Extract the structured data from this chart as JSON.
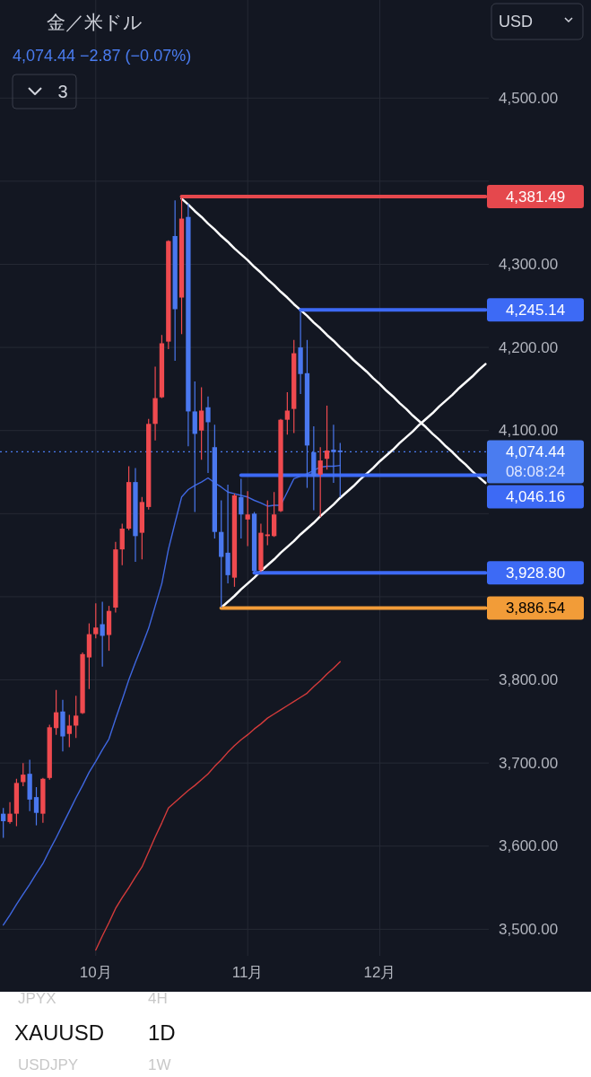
{
  "chart_data": {
    "type": "candlestick",
    "title": "金／米ドル",
    "subtitle": "4,074.44 −2.87 (−0.07%)",
    "categories": [
      null,
      null,
      null,
      null,
      null,
      null,
      null,
      null,
      null,
      null,
      null,
      null,
      null,
      null,
      "10月",
      null,
      null,
      null,
      null,
      null,
      null,
      null,
      null,
      null,
      null,
      null,
      null,
      null,
      null,
      null,
      null,
      null,
      null,
      null,
      null,
      null,
      null,
      "11月",
      null,
      null,
      null,
      null,
      null,
      null,
      null,
      null,
      null,
      null,
      null,
      null,
      null,
      null,
      null,
      null,
      null,
      null,
      null,
      "12月",
      null,
      null,
      null,
      null,
      null,
      null,
      null,
      null,
      null,
      null,
      null,
      null,
      null,
      null,
      null,
      null
    ],
    "ohlc": [
      [
        3639,
        3646,
        3610,
        3630
      ],
      [
        3629,
        3653,
        3627,
        3639
      ],
      [
        3639,
        3681,
        3624,
        3676
      ],
      [
        3677,
        3700,
        3672,
        3686
      ],
      [
        3687,
        3704,
        3642,
        3656
      ],
      [
        3659,
        3671,
        3625,
        3640
      ],
      [
        3639,
        3682,
        3628,
        3681
      ],
      [
        3682,
        3746,
        3680,
        3743
      ],
      [
        3742,
        3788,
        3734,
        3761
      ],
      [
        3762,
        3776,
        3714,
        3732
      ],
      [
        3735,
        3758,
        3719,
        3745
      ],
      [
        3745,
        3781,
        3730,
        3757
      ],
      [
        3760,
        3833,
        3759,
        3831
      ],
      [
        3827,
        3868,
        3789,
        3855
      ],
      [
        3855,
        3892,
        3850,
        3863
      ],
      [
        3867,
        3894,
        3816,
        3853
      ],
      [
        3854,
        3889,
        3835,
        3883
      ],
      [
        3887,
        3966,
        3881,
        3957
      ],
      [
        3957,
        3988,
        3938,
        3982
      ],
      [
        3982,
        4057,
        3980,
        4038
      ],
      [
        4038,
        4055,
        3942,
        3973
      ],
      [
        3977,
        4020,
        3945,
        4014
      ],
      [
        4008,
        4114,
        4005,
        4108
      ],
      [
        4108,
        4177,
        4088,
        4139
      ],
      [
        4140,
        4215,
        4139,
        4205
      ],
      [
        4207,
        4329,
        4198,
        4328
      ],
      [
        4334,
        4377,
        4184,
        4246
      ],
      [
        4260,
        4381,
        4216,
        4355
      ],
      [
        4357,
        4373,
        4081,
        4123
      ],
      [
        4123,
        4159,
        4002,
        4096
      ],
      [
        4100,
        4152,
        4065,
        4124
      ],
      [
        4128,
        4141,
        4049,
        4110
      ],
      [
        4080,
        4107,
        3970,
        3978
      ],
      [
        3978,
        4016,
        3887,
        3948
      ],
      [
        3953,
        4035,
        3916,
        3926
      ],
      [
        3923,
        4024,
        3912,
        4022
      ],
      [
        4020,
        4042,
        3970,
        3999
      ],
      [
        3993,
        4027,
        3961,
        3999
      ],
      [
        4000,
        4002,
        3929,
        3931
      ],
      [
        3932,
        3988,
        3930,
        3977
      ],
      [
        3973,
        4016,
        3962,
        3975
      ],
      [
        3973,
        4026,
        3972,
        3999
      ],
      [
        4003,
        4114,
        4002,
        4113
      ],
      [
        4113,
        4146,
        4095,
        4124
      ],
      [
        4126,
        4209,
        4097,
        4193
      ],
      [
        4200,
        4245,
        4144,
        4168
      ],
      [
        4169,
        4209,
        4031,
        4082
      ],
      [
        4074,
        4105,
        4004,
        4045
      ],
      [
        4047,
        4080,
        3996,
        4064
      ],
      [
        4066,
        4130,
        4053,
        4076
      ],
      [
        4077,
        4107,
        4037,
        4074
      ],
      [
        4076,
        4085,
        4020,
        4074
      ],
      null,
      null,
      null,
      null,
      null,
      null,
      null,
      null,
      null,
      null,
      null,
      null,
      null,
      null,
      null,
      null,
      null,
      null,
      null,
      null,
      null,
      null
    ],
    "colors": [
      "#4a78ef",
      "#ef4a4f",
      "#ef4a4f",
      "#ef4a4f",
      "#4a78ef",
      "#4a78ef",
      "#ef4a4f",
      "#ef4a4f",
      "#ef4a4f",
      "#4a78ef",
      "#ef4a4f",
      "#ef4a4f",
      "#ef4a4f",
      "#ef4a4f",
      "#ef4a4f",
      "#4a78ef",
      "#ef4a4f",
      "#ef4a4f",
      "#ef4a4f",
      "#ef4a4f",
      "#4a78ef",
      "#ef4a4f",
      "#ef4a4f",
      "#ef4a4f",
      "#ef4a4f",
      "#ef4a4f",
      "#4a78ef",
      "#ef4a4f",
      "#4a78ef",
      "#4a78ef",
      "#ef4a4f",
      "#4a78ef",
      "#4a78ef",
      "#4a78ef",
      "#4a78ef",
      "#ef4a4f",
      "#4a78ef",
      "#ef4a4f",
      "#4a78ef",
      "#ef4a4f",
      "#ef4a4f",
      "#ef4a4f",
      "#ef4a4f",
      "#ef4a4f",
      "#ef4a4f",
      "#4a78ef",
      "#4a78ef",
      "#4a78ef",
      "#ef4a4f",
      "#ef4a4f",
      "#4a78ef",
      "#4a78ef",
      null,
      null,
      null,
      null,
      null,
      null,
      null,
      null,
      null,
      null,
      null,
      null,
      null,
      null,
      null,
      null,
      null,
      null,
      null,
      null,
      null,
      null
    ],
    "series": [
      {
        "type": "line",
        "color": "#3f67e0",
        "values": [
          3505,
          3517,
          3530,
          3542,
          3554,
          3567,
          3579,
          3595,
          3610,
          3626,
          3642,
          3658,
          3673,
          3689,
          3702,
          3716,
          3729,
          3753,
          3776,
          3800,
          3821,
          3841,
          3862,
          3889,
          3916,
          3957,
          3989,
          4020,
          4029,
          4034,
          4038,
          4043,
          4037,
          4032,
          4026,
          4024,
          4022,
          4020,
          4016,
          4013,
          4009,
          4010,
          4010,
          4026,
          4042,
          4045,
          4048,
          4052,
          4056,
          4057,
          4057,
          4058,
          null,
          null,
          null,
          null,
          null,
          null,
          null,
          null,
          null,
          null,
          null,
          null,
          null,
          null,
          null,
          null,
          null,
          null,
          null,
          null,
          null,
          null
        ]
      },
      {
        "type": "line",
        "color": "#d43b3b",
        "values": [
          null,
          null,
          null,
          null,
          null,
          null,
          null,
          null,
          null,
          null,
          null,
          null,
          null,
          null,
          3475,
          3492,
          3508,
          3525,
          3538,
          3550,
          3563,
          3575,
          3593,
          3611,
          3628,
          3646,
          3653,
          3660,
          3667,
          3673,
          3680,
          3687,
          3696,
          3704,
          3713,
          3721,
          3728,
          3734,
          3741,
          3747,
          3754,
          3759,
          3764,
          3769,
          3774,
          3779,
          3784,
          3792,
          3799,
          3807,
          3814,
          3822,
          null,
          null,
          null,
          null,
          null,
          null,
          null,
          null,
          null,
          null,
          null,
          null,
          null,
          null,
          null,
          null,
          null,
          null,
          null,
          null,
          null,
          null
        ]
      },
      {
        "type": "line",
        "color": "#ffffff",
        "values": [
          null,
          null,
          null,
          null,
          null,
          null,
          null,
          null,
          null,
          null,
          null,
          null,
          null,
          null,
          null,
          null,
          null,
          null,
          null,
          null,
          null,
          null,
          null,
          null,
          null,
          null,
          null,
          4379,
          4372,
          4364,
          4357,
          4349,
          4342,
          4334,
          4327,
          4319,
          4312,
          4305,
          4297,
          4290,
          4282,
          4275,
          4267,
          4260,
          4252,
          4245,
          4238,
          4230,
          4223,
          4215,
          4208,
          4200,
          4193,
          4185,
          4178,
          4171,
          4163,
          4156,
          4148,
          4141,
          4133,
          4126,
          4118,
          4111,
          4104,
          4096,
          4089,
          4081,
          4074,
          4066,
          4059,
          4051,
          4044,
          4037
        ]
      },
      {
        "type": "line",
        "color": "#ffffff",
        "values": [
          null,
          null,
          null,
          null,
          null,
          null,
          null,
          null,
          null,
          null,
          null,
          null,
          null,
          null,
          null,
          null,
          null,
          null,
          null,
          null,
          null,
          null,
          null,
          null,
          null,
          null,
          null,
          null,
          null,
          null,
          null,
          null,
          null,
          3887,
          3894,
          3901,
          3909,
          3916,
          3923,
          3931,
          3938,
          3945,
          3953,
          3960,
          3967,
          3975,
          3982,
          3989,
          3997,
          4004,
          4011,
          4019,
          4026,
          4033,
          4041,
          4048,
          4055,
          4063,
          4070,
          4077,
          4085,
          4092,
          4099,
          4107,
          4114,
          4121,
          4129,
          4136,
          4143,
          4151,
          4158,
          4165,
          4173,
          4180
        ]
      },
      {
        "type": "line",
        "color": "#e5484d",
        "values": [
          null,
          null,
          null,
          null,
          null,
          null,
          null,
          null,
          null,
          null,
          null,
          null,
          null,
          null,
          null,
          null,
          null,
          null,
          null,
          null,
          null,
          null,
          null,
          null,
          null,
          null,
          null,
          4381.49,
          4381.49,
          4381.49,
          4381.49,
          4381.49,
          4381.49,
          4381.49,
          4381.49,
          4381.49,
          4381.49,
          4381.49,
          4381.49,
          4381.49,
          4381.49,
          4381.49,
          4381.49,
          4381.49,
          4381.49,
          4381.49,
          4381.49,
          4381.49,
          4381.49,
          4381.49,
          4381.49,
          4381.49,
          4381.49,
          4381.49,
          4381.49,
          4381.49,
          4381.49,
          4381.49,
          4381.49,
          4381.49,
          4381.49,
          4381.49,
          4381.49,
          4381.49,
          4381.49,
          4381.49,
          4381.49,
          4381.49,
          4381.49,
          4381.49,
          4381.49,
          4381.49,
          4381.49,
          4381.49
        ],
        "value_labels": [
          null,
          null,
          null,
          null,
          null,
          null,
          null,
          null,
          null,
          null,
          null,
          null,
          null,
          null,
          null,
          null,
          null,
          null,
          null,
          null,
          null,
          null,
          null,
          null,
          null,
          null,
          null,
          null,
          null,
          null,
          null,
          null,
          null,
          null,
          null,
          null,
          null,
          null,
          null,
          null,
          null,
          null,
          null,
          null,
          null,
          null,
          null,
          null,
          null,
          null,
          null,
          null,
          null,
          null,
          null,
          null,
          null,
          null,
          null,
          null,
          null,
          null,
          null,
          null,
          null,
          null,
          null,
          null,
          null,
          null,
          null,
          null,
          null,
          "4,381.49"
        ]
      },
      {
        "type": "line",
        "color": "#3d6af5",
        "values": [
          null,
          null,
          null,
          null,
          null,
          null,
          null,
          null,
          null,
          null,
          null,
          null,
          null,
          null,
          null,
          null,
          null,
          null,
          null,
          null,
          null,
          null,
          null,
          null,
          null,
          null,
          null,
          null,
          null,
          null,
          null,
          null,
          null,
          null,
          null,
          null,
          null,
          null,
          null,
          null,
          null,
          null,
          null,
          null,
          null,
          4245.14,
          4245.14,
          4245.14,
          4245.14,
          4245.14,
          4245.14,
          4245.14,
          4245.14,
          4245.14,
          4245.14,
          4245.14,
          4245.14,
          4245.14,
          4245.14,
          4245.14,
          4245.14,
          4245.14,
          4245.14,
          4245.14,
          4245.14,
          4245.14,
          4245.14,
          4245.14,
          4245.14,
          4245.14,
          4245.14,
          4245.14,
          4245.14,
          4245.14
        ],
        "value_labels": [
          null,
          null,
          null,
          null,
          null,
          null,
          null,
          null,
          null,
          null,
          null,
          null,
          null,
          null,
          null,
          null,
          null,
          null,
          null,
          null,
          null,
          null,
          null,
          null,
          null,
          null,
          null,
          null,
          null,
          null,
          null,
          null,
          null,
          null,
          null,
          null,
          null,
          null,
          null,
          null,
          null,
          null,
          null,
          null,
          null,
          null,
          null,
          null,
          null,
          null,
          null,
          null,
          null,
          null,
          null,
          null,
          null,
          null,
          null,
          null,
          null,
          null,
          null,
          null,
          null,
          null,
          null,
          null,
          null,
          null,
          null,
          null,
          null,
          "4,245.14"
        ]
      },
      {
        "type": "line",
        "color": "#3d6af5",
        "values": [
          null,
          null,
          null,
          null,
          null,
          null,
          null,
          null,
          null,
          null,
          null,
          null,
          null,
          null,
          null,
          null,
          null,
          null,
          null,
          null,
          null,
          null,
          null,
          null,
          null,
          null,
          null,
          null,
          null,
          null,
          null,
          null,
          null,
          null,
          null,
          null,
          4046.16,
          4046.16,
          4046.16,
          4046.16,
          4046.16,
          4046.16,
          4046.16,
          4046.16,
          4046.16,
          4046.16,
          4046.16,
          4046.16,
          4046.16,
          4046.16,
          4046.16,
          4046.16,
          4046.16,
          4046.16,
          4046.16,
          4046.16,
          4046.16,
          4046.16,
          4046.16,
          4046.16,
          4046.16,
          4046.16,
          4046.16,
          4046.16,
          4046.16,
          4046.16,
          4046.16,
          4046.16,
          4046.16,
          4046.16,
          4046.16,
          4046.16,
          4046.16,
          4046.16
        ],
        "value_labels": [
          null,
          null,
          null,
          null,
          null,
          null,
          null,
          null,
          null,
          null,
          null,
          null,
          null,
          null,
          null,
          null,
          null,
          null,
          null,
          null,
          null,
          null,
          null,
          null,
          null,
          null,
          null,
          null,
          null,
          null,
          null,
          null,
          null,
          null,
          null,
          null,
          null,
          null,
          null,
          null,
          null,
          null,
          null,
          null,
          null,
          null,
          null,
          null,
          null,
          null,
          null,
          null,
          null,
          null,
          null,
          null,
          null,
          null,
          null,
          null,
          null,
          null,
          null,
          null,
          null,
          null,
          null,
          null,
          null,
          null,
          null,
          null,
          null,
          "4,046.16"
        ]
      },
      {
        "type": "line",
        "color": "#3d6af5",
        "values": [
          null,
          null,
          null,
          null,
          null,
          null,
          null,
          null,
          null,
          null,
          null,
          null,
          null,
          null,
          null,
          null,
          null,
          null,
          null,
          null,
          null,
          null,
          null,
          null,
          null,
          null,
          null,
          null,
          null,
          null,
          null,
          null,
          null,
          null,
          null,
          null,
          null,
          null,
          3928.8,
          3928.8,
          3928.8,
          3928.8,
          3928.8,
          3928.8,
          3928.8,
          3928.8,
          3928.8,
          3928.8,
          3928.8,
          3928.8,
          3928.8,
          3928.8,
          3928.8,
          3928.8,
          3928.8,
          3928.8,
          3928.8,
          3928.8,
          3928.8,
          3928.8,
          3928.8,
          3928.8,
          3928.8,
          3928.8,
          3928.8,
          3928.8,
          3928.8,
          3928.8,
          3928.8,
          3928.8,
          3928.8,
          3928.8,
          3928.8,
          3928.8
        ],
        "value_labels": [
          null,
          null,
          null,
          null,
          null,
          null,
          null,
          null,
          null,
          null,
          null,
          null,
          null,
          null,
          null,
          null,
          null,
          null,
          null,
          null,
          null,
          null,
          null,
          null,
          null,
          null,
          null,
          null,
          null,
          null,
          null,
          null,
          null,
          null,
          null,
          null,
          null,
          null,
          null,
          null,
          null,
          null,
          null,
          null,
          null,
          null,
          null,
          null,
          null,
          null,
          null,
          null,
          null,
          null,
          null,
          null,
          null,
          null,
          null,
          null,
          null,
          null,
          null,
          null,
          null,
          null,
          null,
          null,
          null,
          null,
          null,
          null,
          null,
          "3,928.80"
        ]
      },
      {
        "type": "line",
        "color": "#f29c38",
        "values": [
          null,
          null,
          null,
          null,
          null,
          null,
          null,
          null,
          null,
          null,
          null,
          null,
          null,
          null,
          null,
          null,
          null,
          null,
          null,
          null,
          null,
          null,
          null,
          null,
          null,
          null,
          null,
          null,
          null,
          null,
          null,
          null,
          null,
          3886.54,
          3886.54,
          3886.54,
          3886.54,
          3886.54,
          3886.54,
          3886.54,
          3886.54,
          3886.54,
          3886.54,
          3886.54,
          3886.54,
          3886.54,
          3886.54,
          3886.54,
          3886.54,
          3886.54,
          3886.54,
          3886.54,
          3886.54,
          3886.54,
          3886.54,
          3886.54,
          3886.54,
          3886.54,
          3886.54,
          3886.54,
          3886.54,
          3886.54,
          3886.54,
          3886.54,
          3886.54,
          3886.54,
          3886.54,
          3886.54,
          3886.54,
          3886.54,
          3886.54,
          3886.54,
          3886.54,
          3886.54
        ],
        "value_labels": [
          null,
          null,
          null,
          null,
          null,
          null,
          null,
          null,
          null,
          null,
          null,
          null,
          null,
          null,
          null,
          null,
          null,
          null,
          null,
          null,
          null,
          null,
          null,
          null,
          null,
          null,
          null,
          null,
          null,
          null,
          null,
          null,
          null,
          null,
          null,
          null,
          null,
          null,
          null,
          null,
          null,
          null,
          null,
          null,
          null,
          null,
          null,
          null,
          null,
          null,
          null,
          null,
          null,
          null,
          null,
          null,
          null,
          null,
          null,
          null,
          null,
          null,
          null,
          null,
          null,
          null,
          null,
          null,
          null,
          null,
          null,
          null,
          null,
          "3,886.54"
        ]
      }
    ],
    "ref_lines": [
      {
        "axis": "y",
        "value": 4074.44,
        "label": "4,074.44",
        "color": "#4a7cf0",
        "line_style": "dotted"
      }
    ],
    "ylim": [
      3468,
      4618
    ],
    "yticks": [
      {
        "value": 3500,
        "label": "3,500.00"
      },
      {
        "value": 3600,
        "label": "3,600.00"
      },
      {
        "value": 3700,
        "label": "3,700.00"
      },
      {
        "value": 3800,
        "label": "3,800.00"
      },
      {
        "value": 3900,
        "label": null
      },
      {
        "value": 4000,
        "label": null
      },
      {
        "value": 4100,
        "label": "4,100.00"
      },
      {
        "value": 4200,
        "label": "4,200.00"
      },
      {
        "value": 4300,
        "label": "4,300.00"
      },
      {
        "value": 4400,
        "label": null
      },
      {
        "value": 4500,
        "label": "4,500.00"
      }
    ],
    "grid": true,
    "annotations": [
      "3",
      "USD",
      "08:08:24",
      "JPYX",
      "4H",
      "XAUUSD",
      "1D",
      "USDJPY",
      "1W"
    ]
  }
}
